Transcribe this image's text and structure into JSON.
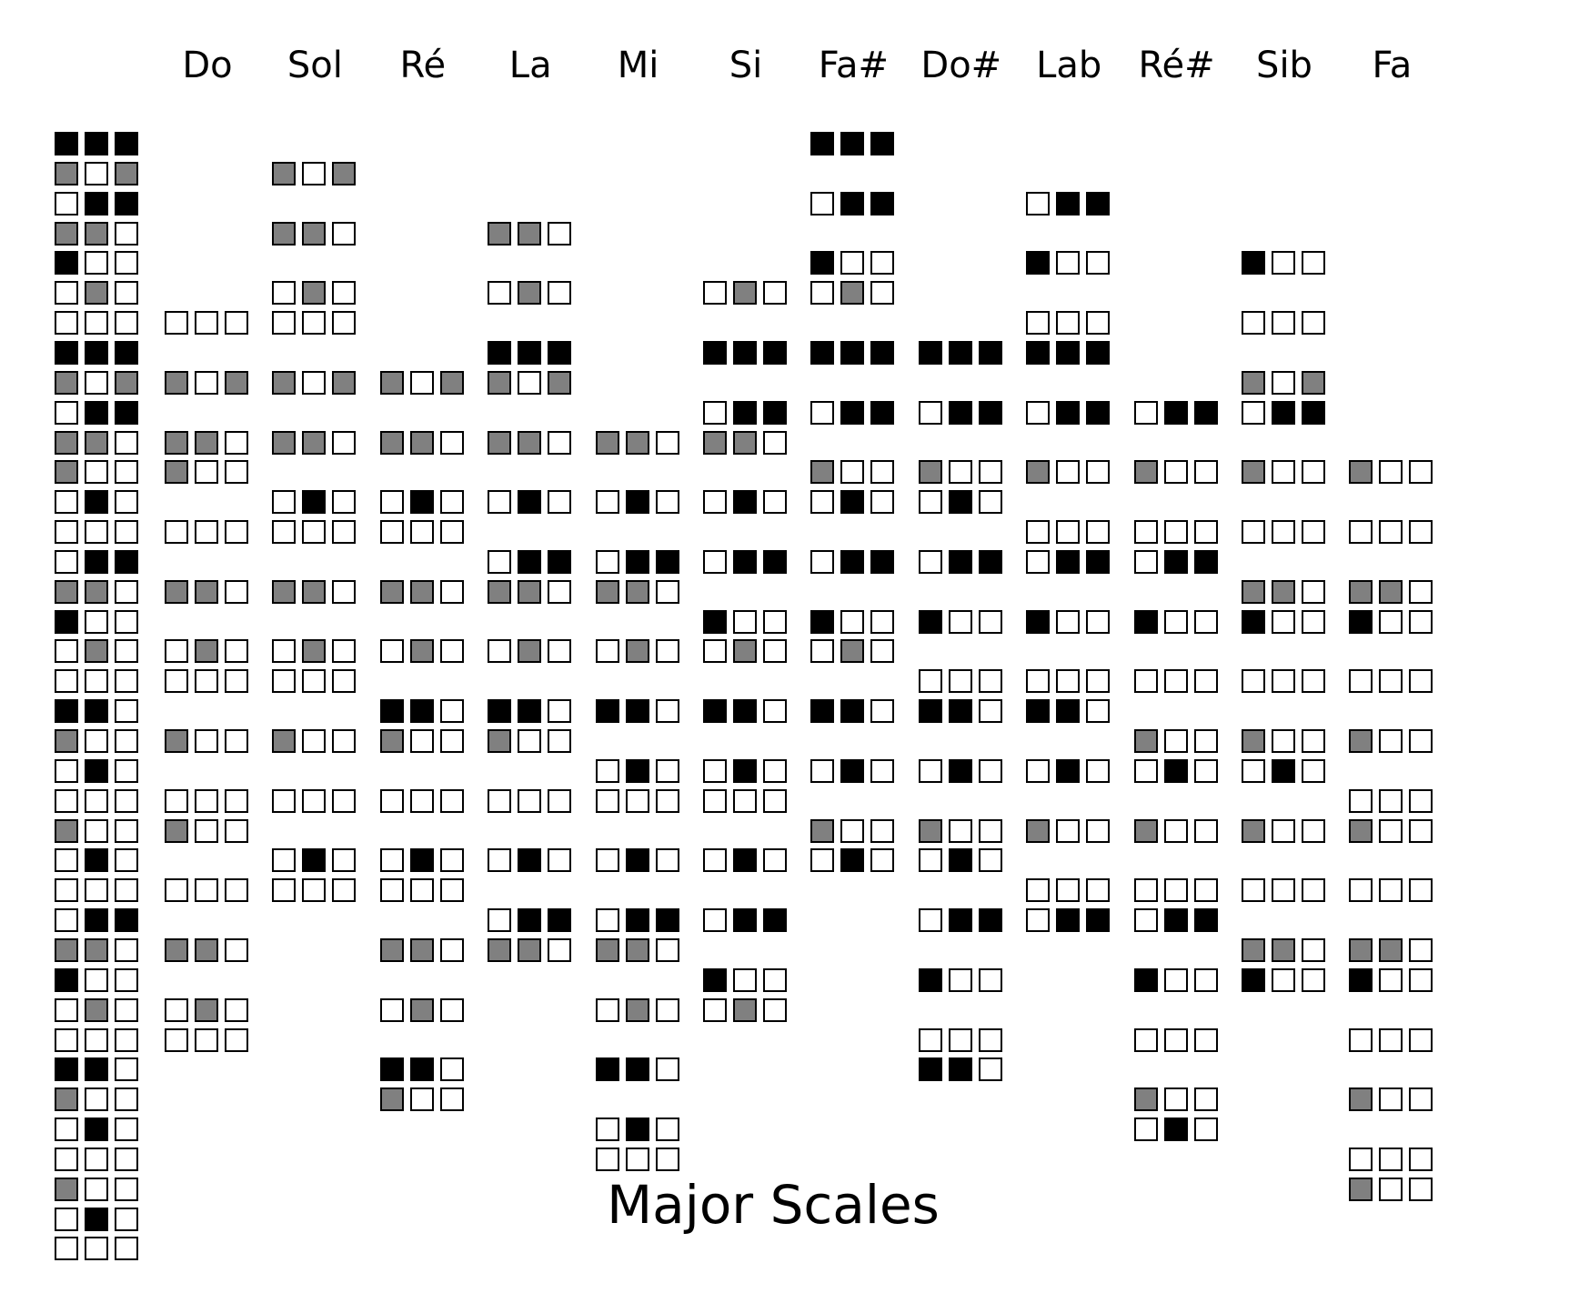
{
  "title": "Major Scales",
  "colors": {
    "black": "#000000",
    "gray": "#808080",
    "white": "#ffffff"
  },
  "legend_column": [
    "KKK",
    "GWG",
    "WKK",
    "GGW",
    "KWW",
    "WGW",
    "WWW",
    "KKK",
    "GWG",
    "WKK",
    "GGW",
    "GWW",
    "WKW",
    "WWW",
    "WKK",
    "GGW",
    "KWW",
    "WGW",
    "WWW",
    "KKW",
    "GWW",
    "WKW",
    "WWW",
    "GWW",
    "WKW",
    "WWW",
    "WKK",
    "GGW",
    "KWW",
    "WGW",
    "WWW",
    "KKW",
    "GWW",
    "WKW",
    "WWW",
    "GWW",
    "WKW",
    "WWW"
  ],
  "scales": [
    {
      "name": "Do",
      "cells": [
        null,
        null,
        null,
        null,
        null,
        null,
        "WWW",
        null,
        "GWG",
        null,
        "GGW",
        "GWW",
        null,
        "WWW",
        null,
        "GGW",
        null,
        "WGW",
        "WWW",
        null,
        "GWW",
        null,
        "WWW",
        "GWW",
        null,
        "WWW",
        null,
        "GGW",
        null,
        "WGW",
        "WWW",
        null,
        null,
        null,
        null,
        null,
        null,
        null
      ]
    },
    {
      "name": "Sol",
      "cells": [
        null,
        "GWG",
        null,
        "GGW",
        null,
        "WGW",
        "WWW",
        null,
        "GWG",
        null,
        "GGW",
        null,
        "WKW",
        "WWW",
        null,
        "GGW",
        null,
        "WGW",
        "WWW",
        null,
        "GWW",
        null,
        "WWW",
        null,
        "WKW",
        "WWW",
        null,
        null,
        null,
        null,
        null,
        null,
        null,
        null,
        null,
        null,
        null,
        null
      ]
    },
    {
      "name": "Ré",
      "cells": [
        null,
        null,
        null,
        null,
        null,
        null,
        null,
        null,
        "GWG",
        null,
        "GGW",
        null,
        "WKW",
        "WWW",
        null,
        "GGW",
        null,
        "WGW",
        null,
        "KKW",
        "GWW",
        null,
        "WWW",
        null,
        "WKW",
        "WWW",
        null,
        "GGW",
        null,
        "WGW",
        null,
        "KKW",
        "GWW",
        null,
        null,
        null,
        null,
        null
      ]
    },
    {
      "name": "La",
      "cells": [
        null,
        null,
        null,
        "GGW",
        null,
        "WGW",
        null,
        "KKK",
        "GWG",
        null,
        "GGW",
        null,
        "WKW",
        null,
        "WKK",
        "GGW",
        null,
        "WGW",
        null,
        "KKW",
        "GWW",
        null,
        "WWW",
        null,
        "WKW",
        null,
        "WKK",
        "GGW",
        null,
        null,
        null,
        null,
        null,
        null,
        null,
        null,
        null,
        null
      ]
    },
    {
      "name": "Mi",
      "cells": [
        null,
        null,
        null,
        null,
        null,
        null,
        null,
        null,
        null,
        null,
        "GGW",
        null,
        "WKW",
        null,
        "WKK",
        "GGW",
        null,
        "WGW",
        null,
        "KKW",
        null,
        "WKW",
        "WWW",
        null,
        "WKW",
        null,
        "WKK",
        "GGW",
        null,
        "WGW",
        null,
        "KKW",
        null,
        "WKW",
        "WWW",
        null,
        null,
        null
      ]
    },
    {
      "name": "Si",
      "cells": [
        null,
        null,
        null,
        null,
        null,
        "WGW",
        null,
        "KKK",
        null,
        "WKK",
        "GGW",
        null,
        "WKW",
        null,
        "WKK",
        null,
        "KWW",
        "WGW",
        null,
        "KKW",
        null,
        "WKW",
        "WWW",
        null,
        "WKW",
        null,
        "WKK",
        null,
        "KWW",
        "WGW",
        null,
        null,
        null,
        null,
        null,
        null,
        null,
        null
      ]
    },
    {
      "name": "Fa#",
      "cells": [
        "KKK",
        null,
        "WKK",
        null,
        "KWW",
        "WGW",
        null,
        "KKK",
        null,
        "WKK",
        null,
        "GWW",
        "WKW",
        null,
        "WKK",
        null,
        "KWW",
        "WGW",
        null,
        "KKW",
        null,
        "WKW",
        null,
        "GWW",
        "WKW",
        null,
        null,
        null,
        null,
        null,
        null,
        null,
        null,
        null,
        null,
        null,
        null,
        null
      ]
    },
    {
      "name": "Do#",
      "cells": [
        null,
        null,
        null,
        null,
        null,
        null,
        null,
        "KKK",
        null,
        "WKK",
        null,
        "GWW",
        "WKW",
        null,
        "WKK",
        null,
        "KWW",
        null,
        "WWW",
        "KKW",
        null,
        "WKW",
        null,
        "GWW",
        "WKW",
        null,
        "WKK",
        null,
        "KWW",
        null,
        "WWW",
        "KKW",
        null,
        null,
        null,
        null,
        null,
        null
      ]
    },
    {
      "name": "Lab",
      "cells": [
        null,
        null,
        "WKK",
        null,
        "KWW",
        null,
        "WWW",
        "KKK",
        null,
        "WKK",
        null,
        "GWW",
        null,
        "WWW",
        "WKK",
        null,
        "KWW",
        null,
        "WWW",
        "KKW",
        null,
        "WKW",
        null,
        "GWW",
        null,
        "WWW",
        "WKK",
        null,
        null,
        null,
        null,
        null,
        null,
        null,
        null,
        null,
        null,
        null
      ]
    },
    {
      "name": "Ré#",
      "cells": [
        null,
        null,
        null,
        null,
        null,
        null,
        null,
        null,
        null,
        "WKK",
        null,
        "GWW",
        null,
        "WWW",
        "WKK",
        null,
        "KWW",
        null,
        "WWW",
        null,
        "GWW",
        "WKW",
        null,
        "GWW",
        null,
        "WWW",
        "WKK",
        null,
        "KWW",
        null,
        "WWW",
        null,
        "GWW",
        "WKW",
        null,
        null,
        null,
        null
      ]
    },
    {
      "name": "Sib",
      "cells": [
        null,
        null,
        null,
        null,
        "KWW",
        null,
        "WWW",
        null,
        "GWG",
        "WKK",
        null,
        "GWW",
        null,
        "WWW",
        null,
        "GGW",
        "KWW",
        null,
        "WWW",
        null,
        "GWW",
        "WKW",
        null,
        "GWW",
        null,
        "WWW",
        null,
        "GGW",
        "KWW",
        null,
        null,
        null,
        null,
        null,
        null,
        null,
        null,
        null
      ]
    },
    {
      "name": "Fa",
      "cells": [
        null,
        null,
        null,
        null,
        null,
        null,
        null,
        null,
        null,
        null,
        null,
        "GWW",
        null,
        "WWW",
        null,
        "GGW",
        "KWW",
        null,
        "WWW",
        null,
        "GWW",
        null,
        "WWW",
        "GWW",
        null,
        "WWW",
        null,
        "GGW",
        "KWW",
        null,
        "WWW",
        null,
        "GWW",
        null,
        "WWW",
        "GWW",
        null,
        null
      ]
    }
  ]
}
